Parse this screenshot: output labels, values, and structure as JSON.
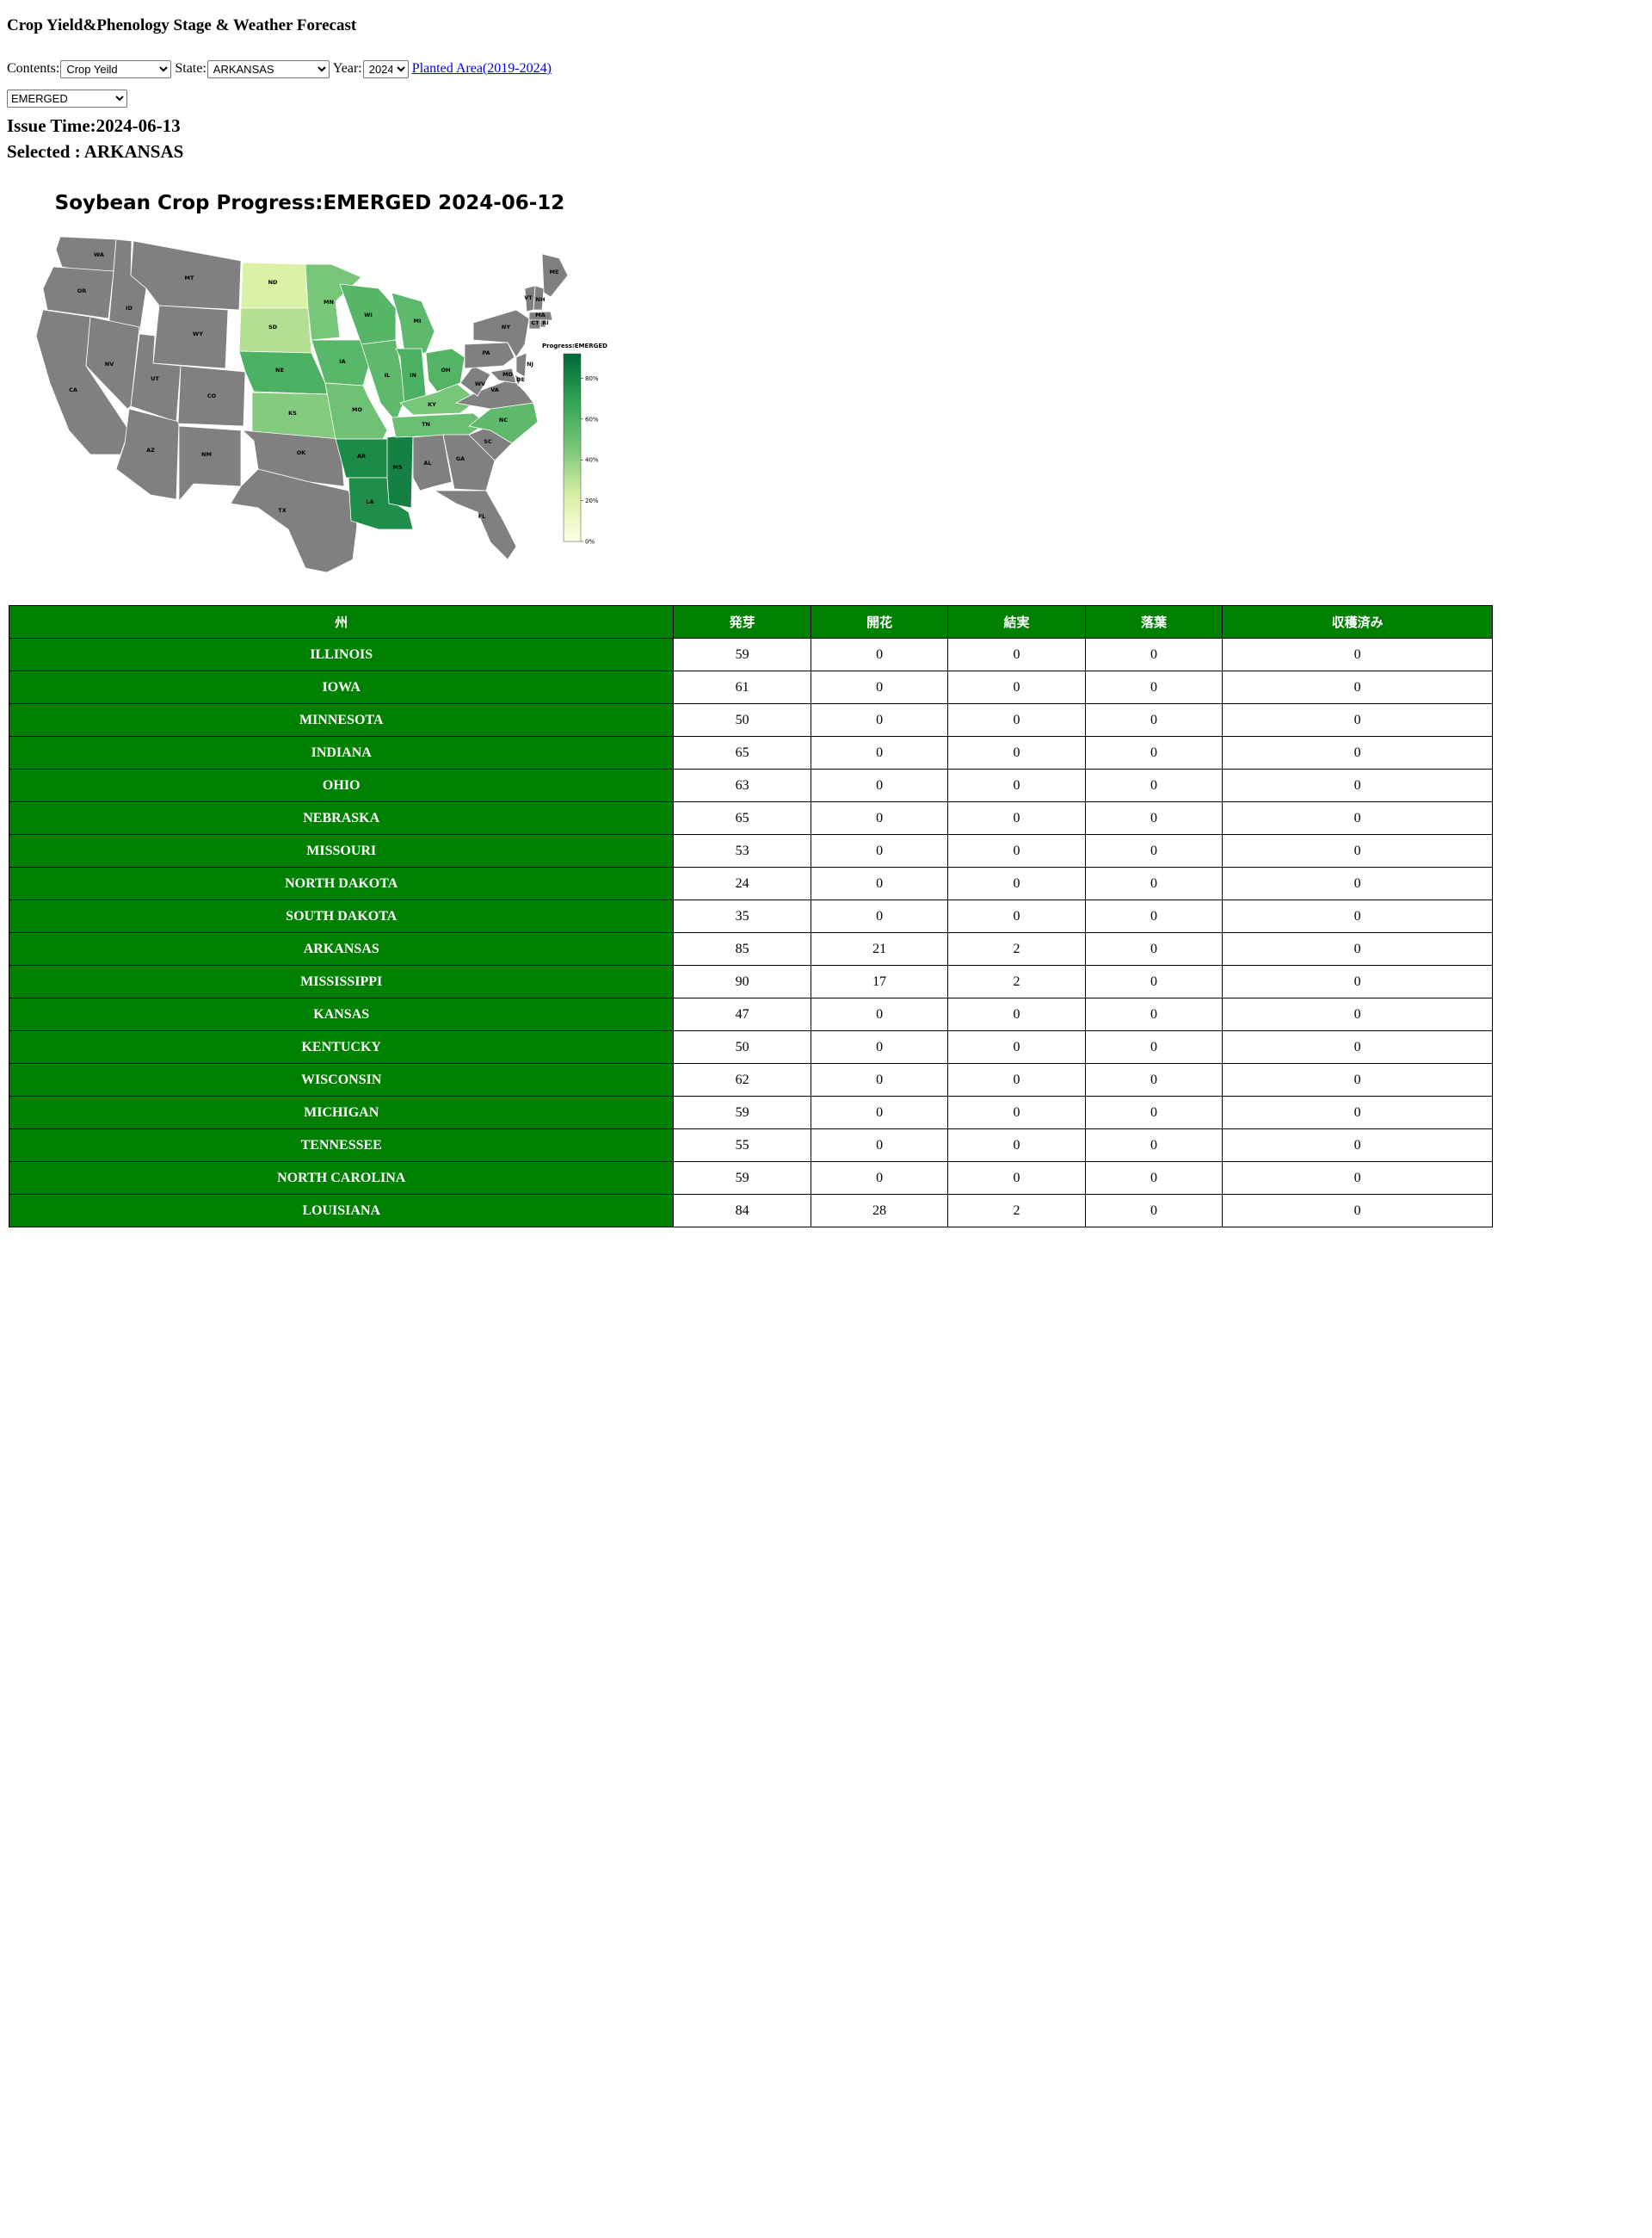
{
  "page": {
    "title": "Crop Yield&Phenology Stage & Weather Forecast"
  },
  "controls": {
    "contents_label": "Contents:",
    "contents_value": "Crop Yeild",
    "state_label": "State:",
    "state_value": "ARKANSAS",
    "year_label": "Year:",
    "year_value": "2024",
    "link_text": "Planted Area(2019-2024)",
    "stage_value": "EMERGED"
  },
  "info": {
    "issue_time": "Issue Time:2024-06-13",
    "selected": "Selected : ARKANSAS"
  },
  "map": {
    "title": "Soybean Crop Progress:EMERGED 2024-06-12",
    "legend_title": "Progress:EMERGED",
    "legend_ticks": [
      "0%",
      "20%",
      "40%",
      "60%",
      "80%"
    ],
    "no_data_color": "#808080",
    "colorscale": [
      "#ffffe5",
      "#d9f0a3",
      "#78c679",
      "#31a354",
      "#006837"
    ],
    "state_labels": [
      "WA",
      "OR",
      "CA",
      "ID",
      "NV",
      "MT",
      "WY",
      "UT",
      "AZ",
      "CO",
      "NM",
      "ND",
      "SD",
      "NE",
      "KS",
      "OK",
      "TX",
      "MN",
      "IA",
      "MO",
      "AR",
      "LA",
      "WI",
      "IL",
      "MS",
      "MI",
      "IN",
      "KY",
      "TN",
      "AL",
      "OH",
      "GA",
      "FL",
      "SC",
      "NC",
      "VA",
      "WV",
      "PA",
      "NY",
      "VT",
      "NH",
      "ME",
      "MA",
      "CT",
      "RI",
      "NJ",
      "DE",
      "MD"
    ]
  },
  "table": {
    "headers": [
      "州",
      "発芽",
      "開花",
      "結実",
      "落葉",
      "収穫済み"
    ],
    "rows": [
      {
        "state": "ILLINOIS",
        "values": [
          "59",
          "0",
          "0",
          "0",
          "0"
        ]
      },
      {
        "state": "IOWA",
        "values": [
          "61",
          "0",
          "0",
          "0",
          "0"
        ]
      },
      {
        "state": "MINNESOTA",
        "values": [
          "50",
          "0",
          "0",
          "0",
          "0"
        ]
      },
      {
        "state": "INDIANA",
        "values": [
          "65",
          "0",
          "0",
          "0",
          "0"
        ]
      },
      {
        "state": "OHIO",
        "values": [
          "63",
          "0",
          "0",
          "0",
          "0"
        ]
      },
      {
        "state": "NEBRASKA",
        "values": [
          "65",
          "0",
          "0",
          "0",
          "0"
        ]
      },
      {
        "state": "MISSOURI",
        "values": [
          "53",
          "0",
          "0",
          "0",
          "0"
        ]
      },
      {
        "state": "NORTH DAKOTA",
        "values": [
          "24",
          "0",
          "0",
          "0",
          "0"
        ]
      },
      {
        "state": "SOUTH DAKOTA",
        "values": [
          "35",
          "0",
          "0",
          "0",
          "0"
        ]
      },
      {
        "state": "ARKANSAS",
        "values": [
          "85",
          "21",
          "2",
          "0",
          "0"
        ]
      },
      {
        "state": "MISSISSIPPI",
        "values": [
          "90",
          "17",
          "2",
          "0",
          "0"
        ]
      },
      {
        "state": "KANSAS",
        "values": [
          "47",
          "0",
          "0",
          "0",
          "0"
        ]
      },
      {
        "state": "KENTUCKY",
        "values": [
          "50",
          "0",
          "0",
          "0",
          "0"
        ]
      },
      {
        "state": "WISCONSIN",
        "values": [
          "62",
          "0",
          "0",
          "0",
          "0"
        ]
      },
      {
        "state": "MICHIGAN",
        "values": [
          "59",
          "0",
          "0",
          "0",
          "0"
        ]
      },
      {
        "state": "TENNESSEE",
        "values": [
          "55",
          "0",
          "0",
          "0",
          "0"
        ]
      },
      {
        "state": "NORTH CAROLINA",
        "values": [
          "59",
          "0",
          "0",
          "0",
          "0"
        ]
      },
      {
        "state": "LOUISIANA",
        "values": [
          "84",
          "28",
          "2",
          "0",
          "0"
        ]
      }
    ]
  }
}
